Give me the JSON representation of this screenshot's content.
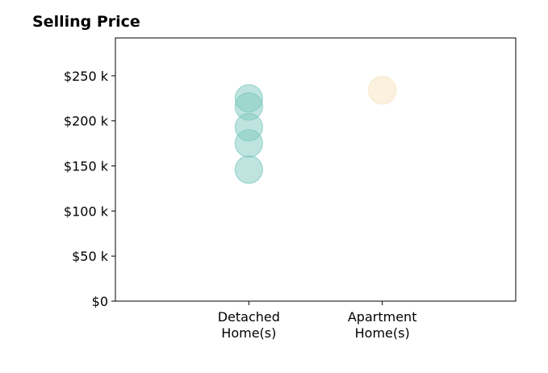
{
  "chart_data": {
    "type": "scatter",
    "title": "Selling Price",
    "xlabel": "",
    "ylabel": "",
    "categories": [
      [
        "Detached",
        "Home(s)"
      ],
      [
        "Apartment",
        "Home(s)"
      ]
    ],
    "y_tick_labels": [
      "$0",
      "$50 k",
      "$100 k",
      "$150 k",
      "$200 k",
      "$250 k"
    ],
    "y_ticks": [
      0,
      50000,
      100000,
      150000,
      200000,
      250000
    ],
    "ylim": [
      0,
      292000
    ],
    "xlim": [
      -1,
      2
    ],
    "grid": false,
    "series": [
      {
        "category_index": 0,
        "color": "#7fc9c0",
        "values": [
          225000,
          216000,
          193000,
          175000,
          146000
        ]
      },
      {
        "category_index": 1,
        "color": "#f5e3bd",
        "values": [
          234000
        ]
      }
    ]
  }
}
